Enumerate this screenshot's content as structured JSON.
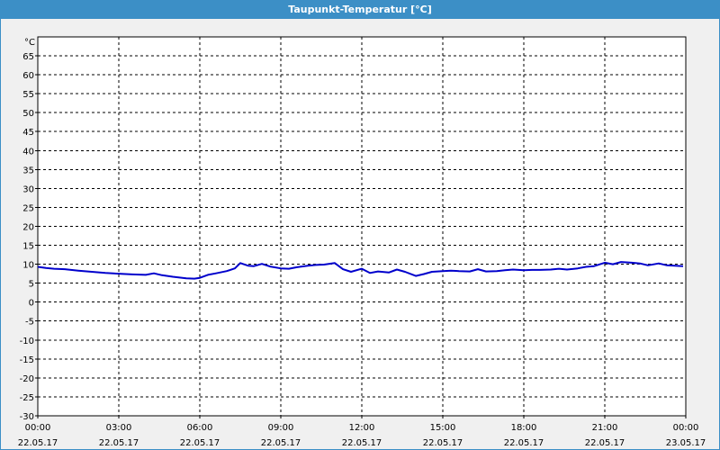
{
  "window": {
    "title": "Taupunkt-Temperatur [°C]"
  },
  "chart_data": {
    "type": "line",
    "title": "Taupunkt-Temperatur [°C]",
    "ylabel": "°C",
    "ylim": [
      -30,
      68
    ],
    "yticks": [
      -30,
      -25,
      -20,
      -15,
      -10,
      -5,
      0,
      5,
      10,
      15,
      20,
      25,
      30,
      35,
      40,
      45,
      50,
      55,
      60,
      65
    ],
    "xlim": [
      0,
      24
    ],
    "xticks": [
      {
        "x": 0,
        "time": "00:00",
        "date": "22.05.17"
      },
      {
        "x": 3,
        "time": "03:00",
        "date": "22.05.17"
      },
      {
        "x": 6,
        "time": "06:00",
        "date": "22.05.17"
      },
      {
        "x": 9,
        "time": "09:00",
        "date": "22.05.17"
      },
      {
        "x": 12,
        "time": "12:00",
        "date": "22.05.17"
      },
      {
        "x": 15,
        "time": "15:00",
        "date": "22.05.17"
      },
      {
        "x": 18,
        "time": "18:00",
        "date": "22.05.17"
      },
      {
        "x": 21,
        "time": "21:00",
        "date": "22.05.17"
      },
      {
        "x": 24,
        "time": "00:00",
        "date": "23.05.17"
      }
    ],
    "grid": true,
    "line_color": "#0000cc",
    "series": [
      {
        "x": [
          0,
          0.3,
          0.6,
          1.0,
          1.5,
          2.0,
          2.5,
          3.0,
          3.5,
          4.0,
          4.3,
          4.6,
          5.0,
          5.5,
          5.8,
          6.0,
          6.3,
          6.6,
          7.0,
          7.3,
          7.5,
          7.8,
          8.0,
          8.3,
          8.6,
          9.0,
          9.3,
          9.6,
          10.0,
          10.3,
          10.6,
          11.0,
          11.3,
          11.6,
          12.0,
          12.3,
          12.6,
          13.0,
          13.3,
          13.6,
          14.0,
          14.3,
          14.6,
          15.0,
          15.3,
          15.6,
          16.0,
          16.3,
          16.6,
          17.0,
          17.3,
          17.6,
          18.0,
          18.3,
          18.6,
          19.0,
          19.3,
          19.6,
          20.0,
          20.3,
          20.6,
          21.0,
          21.3,
          21.6,
          22.0,
          22.3,
          22.6,
          23.0,
          23.3,
          23.6,
          23.9
        ],
        "y": [
          9.3,
          9.0,
          8.8,
          8.7,
          8.3,
          8.0,
          7.7,
          7.5,
          7.3,
          7.2,
          7.6,
          7.1,
          6.7,
          6.3,
          6.2,
          6.4,
          7.2,
          7.6,
          8.2,
          8.9,
          10.3,
          9.6,
          9.5,
          10.1,
          9.4,
          8.9,
          8.8,
          9.2,
          9.6,
          9.8,
          9.9,
          10.3,
          8.7,
          8.0,
          8.8,
          7.7,
          8.1,
          7.8,
          8.6,
          8.0,
          6.9,
          7.4,
          8.0,
          8.2,
          8.3,
          8.2,
          8.1,
          8.7,
          8.1,
          8.2,
          8.4,
          8.6,
          8.4,
          8.5,
          8.5,
          8.6,
          8.8,
          8.6,
          8.9,
          9.3,
          9.5,
          10.4,
          10.0,
          10.6,
          10.4,
          10.2,
          9.7,
          10.2,
          9.7,
          9.6,
          9.5
        ]
      }
    ]
  }
}
